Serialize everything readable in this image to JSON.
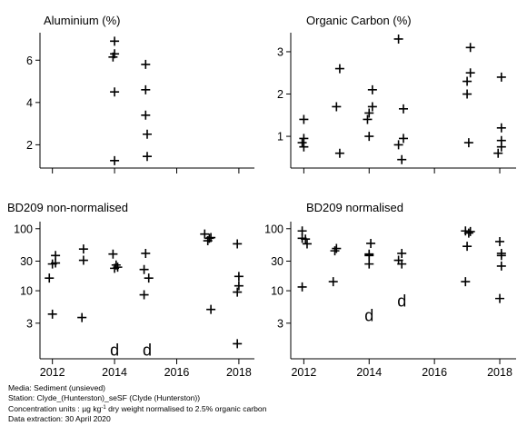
{
  "chart_data": [
    {
      "type": "scatter",
      "title": "Aluminium (%)",
      "yscale": "linear",
      "ylim": [
        0.9,
        7.3
      ],
      "xlim": [
        2011.6,
        2018.5
      ],
      "yticks": [
        2,
        4,
        6
      ],
      "ytick_labels": [
        "2",
        "4",
        "6"
      ],
      "xticks": [
        2012,
        2014,
        2016,
        2018
      ],
      "xtick_labels": [],
      "points": [
        {
          "x": 2014.0,
          "y": 6.9
        },
        {
          "x": 2014.0,
          "y": 6.3
        },
        {
          "x": 2013.95,
          "y": 6.15
        },
        {
          "x": 2014.0,
          "y": 4.5
        },
        {
          "x": 2014.0,
          "y": 1.25
        },
        {
          "x": 2015.0,
          "y": 5.8
        },
        {
          "x": 2015.0,
          "y": 4.6
        },
        {
          "x": 2015.0,
          "y": 3.4
        },
        {
          "x": 2015.05,
          "y": 2.5
        },
        {
          "x": 2015.05,
          "y": 1.45
        }
      ],
      "d_points": []
    },
    {
      "type": "scatter",
      "title": "Organic Carbon (%)",
      "yscale": "linear",
      "ylim": [
        0.25,
        3.45
      ],
      "xlim": [
        2011.6,
        2018.5
      ],
      "yticks": [
        1,
        2,
        3
      ],
      "ytick_labels": [
        "1",
        "2",
        "3"
      ],
      "xticks": [
        2012,
        2014,
        2016,
        2018
      ],
      "xtick_labels": [],
      "points": [
        {
          "x": 2012.0,
          "y": 1.4
        },
        {
          "x": 2012.0,
          "y": 0.95
        },
        {
          "x": 2011.95,
          "y": 0.85
        },
        {
          "x": 2012.0,
          "y": 0.75
        },
        {
          "x": 2013.1,
          "y": 2.6
        },
        {
          "x": 2013.0,
          "y": 1.7
        },
        {
          "x": 2013.1,
          "y": 0.6
        },
        {
          "x": 2014.1,
          "y": 2.1
        },
        {
          "x": 2014.1,
          "y": 1.7
        },
        {
          "x": 2014.0,
          "y": 1.55
        },
        {
          "x": 2013.95,
          "y": 1.4
        },
        {
          "x": 2014.0,
          "y": 1.0
        },
        {
          "x": 2014.9,
          "y": 3.3
        },
        {
          "x": 2015.05,
          "y": 1.65
        },
        {
          "x": 2014.9,
          "y": 0.8
        },
        {
          "x": 2015.05,
          "y": 0.95
        },
        {
          "x": 2015.0,
          "y": 0.45
        },
        {
          "x": 2017.1,
          "y": 3.1
        },
        {
          "x": 2017.1,
          "y": 2.5
        },
        {
          "x": 2017.0,
          "y": 2.3
        },
        {
          "x": 2017.0,
          "y": 2.0
        },
        {
          "x": 2017.05,
          "y": 0.85
        },
        {
          "x": 2018.05,
          "y": 2.4
        },
        {
          "x": 2018.05,
          "y": 1.2
        },
        {
          "x": 2018.05,
          "y": 0.9
        },
        {
          "x": 2018.05,
          "y": 0.75
        },
        {
          "x": 2017.95,
          "y": 0.6
        }
      ],
      "d_points": []
    },
    {
      "type": "scatter",
      "title": "BD209 non-normalised",
      "yscale": "log",
      "ylim": [
        0.8,
        130
      ],
      "xlim": [
        2011.6,
        2018.5
      ],
      "yticks": [
        3,
        10,
        30,
        100
      ],
      "ytick_labels": [
        "3",
        "10",
        "30",
        "100"
      ],
      "xticks": [
        2012,
        2014,
        2016,
        2018
      ],
      "xtick_labels": [
        "2012",
        "2014",
        "2016",
        "2018"
      ],
      "points": [
        {
          "x": 2012.1,
          "y": 37
        },
        {
          "x": 2012.0,
          "y": 27
        },
        {
          "x": 2012.1,
          "y": 28
        },
        {
          "x": 2011.9,
          "y": 16
        },
        {
          "x": 2012.0,
          "y": 4.2
        },
        {
          "x": 2013.0,
          "y": 47
        },
        {
          "x": 2013.0,
          "y": 31
        },
        {
          "x": 2012.95,
          "y": 3.7
        },
        {
          "x": 2013.95,
          "y": 39
        },
        {
          "x": 2014.05,
          "y": 26
        },
        {
          "x": 2014.1,
          "y": 24
        },
        {
          "x": 2014.0,
          "y": 23
        },
        {
          "x": 2015.0,
          "y": 40
        },
        {
          "x": 2014.95,
          "y": 22
        },
        {
          "x": 2015.1,
          "y": 16
        },
        {
          "x": 2014.95,
          "y": 8.6
        },
        {
          "x": 2016.9,
          "y": 82
        },
        {
          "x": 2017.05,
          "y": 70
        },
        {
          "x": 2017.1,
          "y": 72
        },
        {
          "x": 2017.0,
          "y": 64
        },
        {
          "x": 2017.1,
          "y": 5.0
        },
        {
          "x": 2017.95,
          "y": 57
        },
        {
          "x": 2018.0,
          "y": 17
        },
        {
          "x": 2018.0,
          "y": 12
        },
        {
          "x": 2017.95,
          "y": 9.5
        },
        {
          "x": 2017.95,
          "y": 1.4
        }
      ],
      "d_points": [
        {
          "x": 2014.0,
          "y": 1.1,
          "label": "d"
        },
        {
          "x": 2015.05,
          "y": 1.1,
          "label": "d"
        }
      ]
    },
    {
      "type": "scatter",
      "title": "BD209 normalised",
      "yscale": "log",
      "ylim": [
        0.8,
        130
      ],
      "xlim": [
        2011.6,
        2018.5
      ],
      "yticks": [
        3,
        10,
        30,
        100
      ],
      "ytick_labels": [
        "3",
        "10",
        "30",
        "100"
      ],
      "xticks": [
        2012,
        2014,
        2016,
        2018
      ],
      "xtick_labels": [
        "2012",
        "2014",
        "2016",
        "2018"
      ],
      "points": [
        {
          "x": 2011.95,
          "y": 92
        },
        {
          "x": 2011.95,
          "y": 70
        },
        {
          "x": 2012.05,
          "y": 68
        },
        {
          "x": 2012.1,
          "y": 57
        },
        {
          "x": 2011.95,
          "y": 11.5
        },
        {
          "x": 2013.0,
          "y": 48
        },
        {
          "x": 2012.95,
          "y": 44
        },
        {
          "x": 2012.9,
          "y": 14
        },
        {
          "x": 2014.05,
          "y": 58
        },
        {
          "x": 2014.0,
          "y": 39
        },
        {
          "x": 2014.0,
          "y": 37
        },
        {
          "x": 2014.0,
          "y": 27
        },
        {
          "x": 2015.0,
          "y": 40
        },
        {
          "x": 2014.9,
          "y": 31
        },
        {
          "x": 2015.0,
          "y": 27
        },
        {
          "x": 2016.95,
          "y": 92
        },
        {
          "x": 2017.05,
          "y": 85
        },
        {
          "x": 2017.1,
          "y": 90
        },
        {
          "x": 2017.0,
          "y": 52
        },
        {
          "x": 2016.95,
          "y": 14
        },
        {
          "x": 2018.0,
          "y": 62
        },
        {
          "x": 2018.05,
          "y": 40
        },
        {
          "x": 2018.05,
          "y": 37
        },
        {
          "x": 2018.05,
          "y": 25
        },
        {
          "x": 2018.0,
          "y": 7.5
        }
      ],
      "d_points": [
        {
          "x": 2014.0,
          "y": 4.0,
          "label": "d"
        },
        {
          "x": 2015.0,
          "y": 6.8,
          "label": "d"
        }
      ]
    }
  ],
  "caption": {
    "media": "Media: Sediment (unsieved)",
    "station": "Station: Clyde_(Hunterston)_seSF (Clyde (Hunterston))",
    "units_prefix": "Concentration units : µg kg",
    "units_sup": "-1",
    "units_suffix": " dry weight normalised to 2.5% organic carbon",
    "extraction": "Data extraction: 30 April 2020"
  }
}
